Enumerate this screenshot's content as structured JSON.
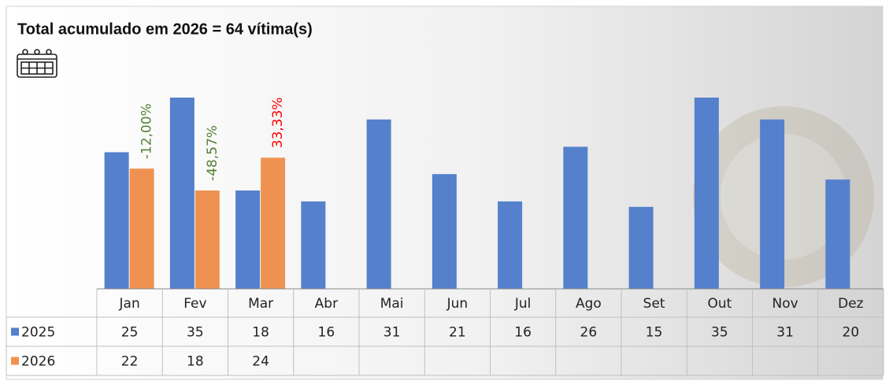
{
  "chart_data": {
    "type": "bar",
    "title": "Total acumulado em 2026 = 64 vítima(s)",
    "categories": [
      "Jan",
      "Fev",
      "Mar",
      "Abr",
      "Mai",
      "Jun",
      "Jul",
      "Ago",
      "Set",
      "Out",
      "Nov",
      "Dez"
    ],
    "series": [
      {
        "name": "2025",
        "color": "#5580cc",
        "values": [
          25,
          35,
          18,
          16,
          31,
          21,
          16,
          26,
          15,
          35,
          31,
          20
        ]
      },
      {
        "name": "2026",
        "color": "#ef9251",
        "values": [
          22,
          18,
          24,
          null,
          null,
          null,
          null,
          null,
          null,
          null,
          null,
          null
        ]
      }
    ],
    "change_labels": [
      "-12,00%",
      "-48,57%",
      "33,33%"
    ]
  }
}
